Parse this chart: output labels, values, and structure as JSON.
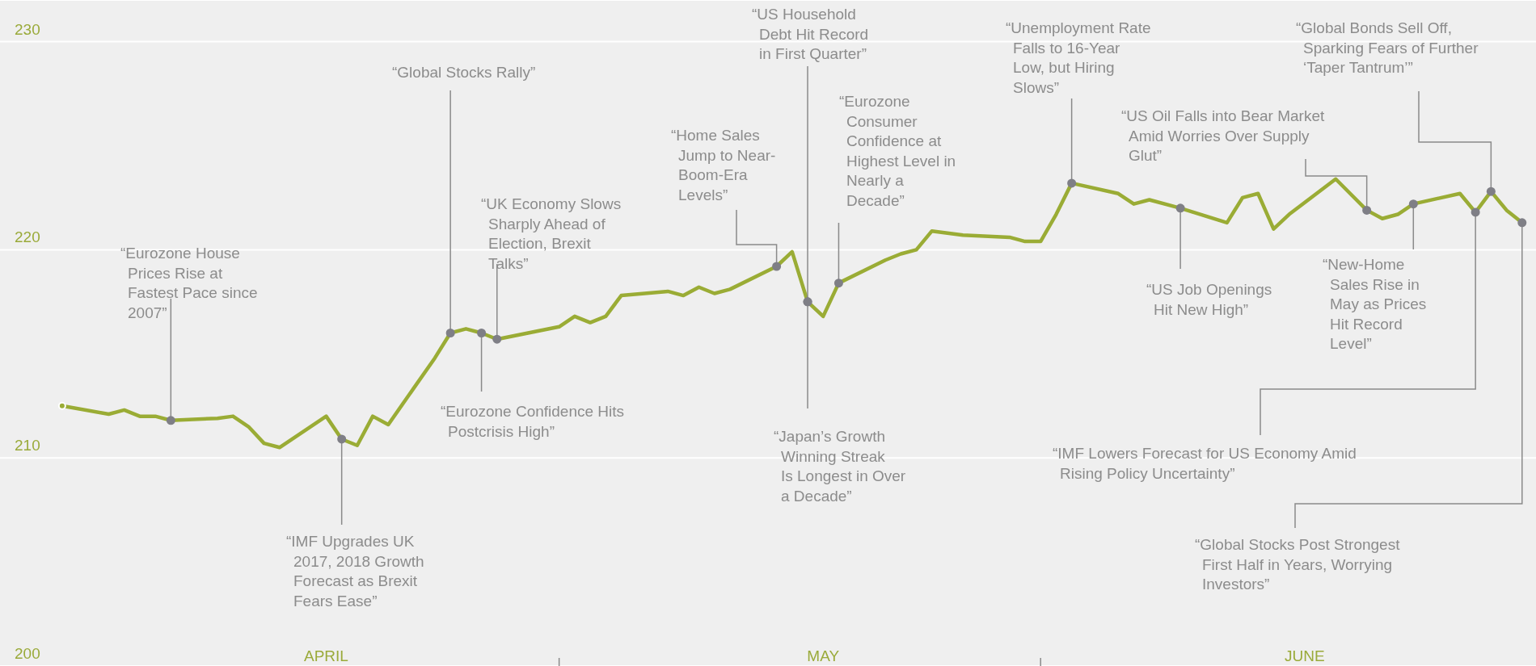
{
  "chart_data": {
    "type": "line",
    "x": [
      "--03-30",
      "--04-02",
      "--04-03",
      "--04-04",
      "--04-05",
      "--04-06",
      "--04-09",
      "--04-10",
      "--04-11",
      "--04-12",
      "--04-13",
      "--04-16",
      "--04-17",
      "--04-18",
      "--04-19",
      "--04-20",
      "--04-23",
      "--04-24",
      "--04-25",
      "--04-26",
      "--04-27",
      "--05-01",
      "--05-02",
      "--05-03",
      "--05-04",
      "--05-05",
      "--05-08",
      "--05-09",
      "--05-10",
      "--05-11",
      "--05-12",
      "--05-15",
      "--05-16",
      "--05-17",
      "--05-18",
      "--05-19",
      "--05-22",
      "--05-23",
      "--05-24",
      "--05-25",
      "--05-27",
      "--05-30",
      "--05-31",
      "--06-01",
      "--06-02",
      "--06-03",
      "--06-06",
      "--06-07",
      "--06-08",
      "--06-10",
      "--06-13",
      "--06-14",
      "--06-15",
      "--06-16",
      "--06-17",
      "--06-20",
      "--06-22",
      "--06-23",
      "--06-24",
      "--06-25",
      "--06-28",
      "--06-29",
      "--06-30",
      "--07-01",
      "--07-02"
    ],
    "values": [
      212.5,
      212.1,
      212.3,
      212.0,
      212.0,
      211.8,
      211.9,
      212.0,
      211.5,
      210.7,
      210.5,
      212.0,
      210.9,
      210.6,
      212.0,
      211.6,
      214.8,
      216.0,
      216.2,
      216.0,
      215.7,
      216.3,
      216.8,
      216.5,
      216.8,
      217.8,
      218.0,
      217.8,
      218.2,
      217.9,
      218.1,
      219.2,
      219.9,
      217.5,
      216.8,
      218.4,
      219.5,
      219.8,
      220.0,
      220.9,
      220.7,
      220.6,
      220.4,
      220.4,
      221.7,
      223.2,
      222.7,
      222.2,
      222.4,
      222.0,
      221.3,
      222.5,
      222.7,
      221.0,
      221.7,
      223.4,
      221.9,
      221.5,
      221.7,
      222.2,
      222.7,
      221.8,
      222.8,
      221.9,
      221.3
    ],
    "color": "#9aac35",
    "xlim": [
      "--03-26",
      "--07-03"
    ],
    "xticks": [
      {
        "value": "--04-16",
        "label": "APRIL"
      },
      {
        "value": "--05-01",
        "label": null
      },
      {
        "value": "--05-18",
        "label": "MAY"
      },
      {
        "value": "--06-01",
        "label": null
      },
      {
        "value": "--06-18",
        "label": "JUNE"
      }
    ],
    "ylim": [
      200,
      232
    ],
    "yticks": [
      200,
      210,
      220,
      230
    ],
    "grid": "y",
    "annotations": [
      {
        "text": "“Eurozone House Prices Rise at Fastest Pace since 2007”",
        "x": "--04-06",
        "y": 211.8
      },
      {
        "text": "“IMF Upgrades UK 2017, 2018 Growth Forecast as Brexit Fears Ease”",
        "x": "--04-17",
        "y": 210.9
      },
      {
        "text": "“Global Stocks Rally”",
        "x": "--04-24",
        "y": 216.0
      },
      {
        "text": "“Eurozone Confidence Hits Postcrisis High”",
        "x": "--04-26",
        "y": 216.0
      },
      {
        "text": "“UK Economy Slows Sharply Ahead of Election, Brexit Talks”",
        "x": "--04-27",
        "y": 215.7
      },
      {
        "text": "“Home Sales Jump to Near-Boom-Era Levels”",
        "x": "--05-15",
        "y": 219.2
      },
      {
        "text": "“US Household Debt Hit Record in First Quarter”",
        "x": "--05-17",
        "y": 217.5
      },
      {
        "text": "“Japan’s Growth Winning Streak Is Longest in Over a Decade”",
        "x": "--05-17",
        "y": 217.5
      },
      {
        "text": "“Eurozone Consumer Confidence at Highest Level in Nearly a Decade”",
        "x": "--05-19",
        "y": 218.4
      },
      {
        "text": "“Unemployment Rate Falls to 16-Year Low, but Hiring Slows”",
        "x": "--06-03",
        "y": 223.2
      },
      {
        "text": "“US Job Openings Hit New High”",
        "x": "--06-10",
        "y": 222.0
      },
      {
        "text": "“US Oil Falls into Bear Market Amid Worries Over Supply Glut”",
        "x": "--06-22",
        "y": 221.9
      },
      {
        "text": "“New-Home Sales Rise in May as Prices Hit Record Level”",
        "x": "--06-25",
        "y": 222.2
      },
      {
        "text": "“IMF Lowers Forecast for US Economy Amid Rising Policy Uncertainty”",
        "x": "--06-29",
        "y": 221.8
      },
      {
        "text": "“Global Bonds Sell Off, Sparking Fears of Further ‘Taper Tantrum’”",
        "x": "--06-30",
        "y": 222.8
      },
      {
        "text": "“Global Stocks Post Strongest First Half in Years, Worrying Investors”",
        "x": "--07-02",
        "y": 221.3
      }
    ]
  }
}
